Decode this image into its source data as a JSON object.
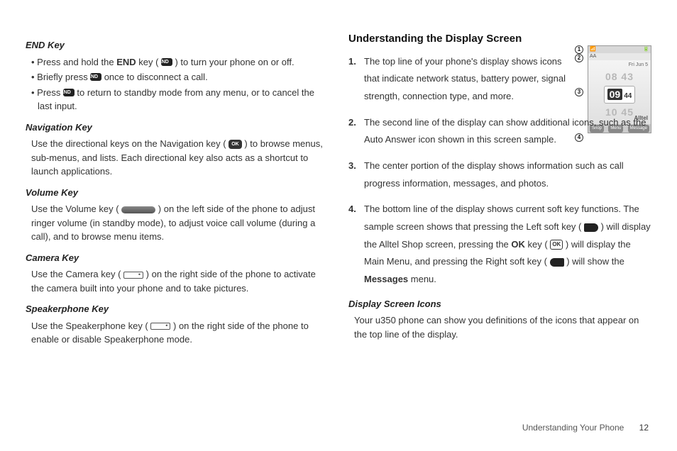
{
  "left": {
    "endKey": {
      "heading": "END Key",
      "b1a": "Press and hold the ",
      "b1b": "END",
      "b1c": " key ( ",
      "b1d": " ) to turn your phone on or off.",
      "b2a": "Briefly press ",
      "b2b": " once to disconnect a call.",
      "b3a": "Press ",
      "b3b": " to return to standby mode from any menu, or to cancel the last input.",
      "endIconText": "END"
    },
    "navKey": {
      "heading": "Navigation Key",
      "p1a": "Use the directional keys on the Navigation key ( ",
      "p1b": " ) to browse menus, sub-menus, and lists. Each directional key also acts as a shortcut to launch applications.",
      "okIconText": "OK"
    },
    "volKey": {
      "heading": "Volume Key",
      "p1a": "Use the Volume key ( ",
      "p1b": " ) on the left side of the phone to adjust ringer volume (in standby mode), to adjust voice call volume (during a call), and to browse menu items."
    },
    "camKey": {
      "heading": "Camera Key",
      "p1a": "Use the Camera key ( ",
      "p1b": " ) on the right side of the phone to activate the camera built into your phone and to take pictures."
    },
    "spkKey": {
      "heading": "Speakerphone Key",
      "p1a": "Use the Speakerphone key ( ",
      "p1b": " ) on the right side of the phone to enable or disable Speakerphone mode."
    }
  },
  "right": {
    "heading": "Understanding the Display Screen",
    "li1": "The top line of your phone's display shows icons that indicate network status, battery power, signal strength, connection type, and more.",
    "li2": "The second line of the display can show additional icons, such as the Auto Answer icon shown in this screen sample.",
    "li3": "The center portion of the display shows information such as call progress information, messages, and photos.",
    "li4a": "The bottom line of the display shows current soft key functions. The sample screen shows that pressing the Left soft key ( ",
    "li4b": " ) will display the Alltel Shop screen, pressing the ",
    "li4c": "OK",
    "li4d": " key ( ",
    "li4e": " ) will display the Main Menu, and pressing the Right soft key ( ",
    "li4f": " ) will show the ",
    "li4g": "Messages",
    "li4h": " menu.",
    "okKeyIconText": "OK",
    "icons": {
      "heading": "Display Screen Icons",
      "p": "Your u350 phone can show you definitions of the icons that appear on the top line of the display."
    },
    "screen": {
      "callouts": [
        "1",
        "2",
        "3",
        "4"
      ],
      "topbarLeft": "📶",
      "topbarRight": "🔋",
      "line2": "AA",
      "date": "Fri Jun 5",
      "timeFaded1": "08 43",
      "timeMainH": "09",
      "timeMainM": "44",
      "timeFaded2": "10 45",
      "carrier": "Alltel",
      "softLeft": "Shop",
      "softMid": "Menu",
      "softRight": "Message"
    }
  },
  "footer": {
    "section": "Understanding Your Phone",
    "page": "12"
  }
}
